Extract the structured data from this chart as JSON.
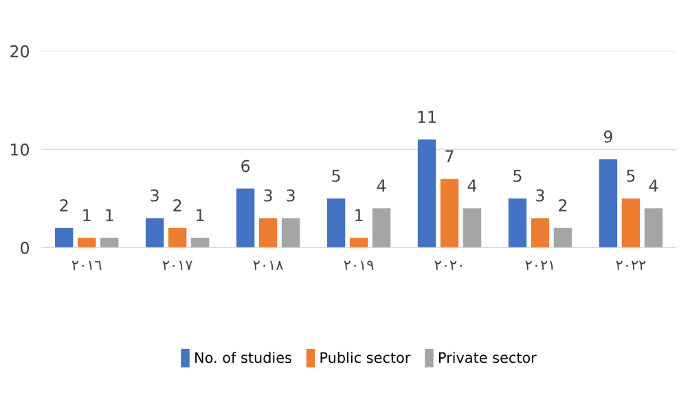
{
  "chart_data": {
    "type": "bar",
    "categories": [
      "٢٠١٦",
      "٢٠١٧",
      "٢٠١٨",
      "٢٠١٩",
      "٢٠٢٠",
      "٢٠٢١",
      "٢٠٢٢"
    ],
    "series": [
      {
        "name": "No. of studies",
        "color": "#4472c4",
        "values": [
          2,
          3,
          6,
          5,
          11,
          5,
          9
        ]
      },
      {
        "name": "Public sector",
        "color": "#ed7d31",
        "values": [
          1,
          2,
          3,
          1,
          7,
          3,
          5
        ]
      },
      {
        "name": "Private sector",
        "color": "#a5a5a5",
        "values": [
          1,
          1,
          3,
          4,
          4,
          2,
          4
        ]
      }
    ],
    "ylim": [
      0,
      20
    ],
    "yticks": [
      0,
      10,
      20
    ],
    "grid": "y",
    "legend": "bottom",
    "data_labels": true
  }
}
